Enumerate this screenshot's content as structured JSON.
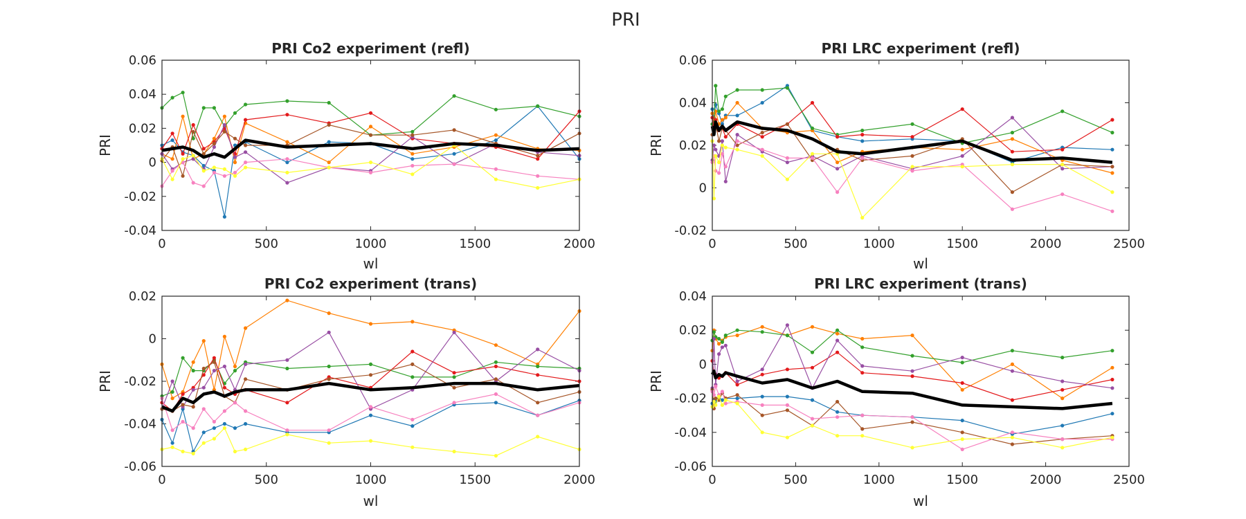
{
  "figure": {
    "title": "PRI"
  },
  "series_colors": [
    "#1f78b4",
    "#ff7f00",
    "#33a02c",
    "#e31a1c",
    "#984ea3",
    "#a65628",
    "#f781bf",
    "#ffff33"
  ],
  "mean_color": "#000000",
  "chart_data": [
    {
      "type": "line",
      "title": "PRI Co2 experiment (refl)",
      "xlabel": "wl",
      "ylabel": "PRI",
      "xlim": [
        0,
        2000
      ],
      "ylim": [
        -0.04,
        0.06
      ],
      "xticks": [
        0,
        500,
        1000,
        1500,
        2000
      ],
      "yticks": [
        -0.04,
        -0.02,
        0,
        0.02,
        0.04,
        0.06
      ],
      "ytick_labels": [
        "-0.04",
        "-0.02",
        "0",
        "0.02",
        "0.04",
        "0.06"
      ],
      "grid": false,
      "legend": "none",
      "x": [
        0,
        50,
        100,
        150,
        200,
        250,
        300,
        350,
        400,
        600,
        800,
        1000,
        1200,
        1400,
        1600,
        1800,
        2000
      ],
      "series": [
        {
          "values": [
            0.01,
            0.013,
            0.006,
            0.004,
            -0.002,
            -0.005,
            -0.032,
            0.01,
            0.012,
            0.0,
            0.012,
            0.011,
            0.002,
            0.005,
            0.013,
            0.033,
            0.002
          ]
        },
        {
          "values": [
            0.005,
            0.002,
            0.027,
            0.002,
            0.005,
            0.014,
            0.027,
            0.0,
            0.023,
            0.012,
            0.0,
            0.021,
            0.005,
            0.009,
            0.016,
            0.008,
            0.007
          ]
        },
        {
          "values": [
            0.032,
            0.038,
            0.041,
            0.014,
            0.032,
            0.032,
            0.021,
            0.029,
            0.034,
            0.036,
            0.035,
            0.016,
            0.018,
            0.039,
            0.031,
            0.033,
            0.027
          ]
        },
        {
          "values": [
            0.008,
            0.017,
            0.005,
            0.022,
            0.008,
            0.012,
            0.02,
            0.005,
            0.025,
            0.028,
            0.023,
            0.029,
            0.014,
            0.011,
            0.009,
            0.002,
            0.03
          ]
        },
        {
          "values": [
            0.005,
            -0.004,
            0.0,
            0.002,
            -0.004,
            0.009,
            0.022,
            0.003,
            0.006,
            -0.012,
            -0.003,
            -0.005,
            0.015,
            -0.001,
            0.011,
            0.006,
            0.004
          ]
        },
        {
          "values": [
            0.001,
            0.009,
            -0.008,
            0.018,
            0.005,
            0.011,
            0.018,
            0.014,
            0.01,
            0.01,
            0.022,
            0.016,
            0.016,
            0.019,
            0.011,
            0.004,
            0.017
          ]
        },
        {
          "values": [
            -0.014,
            -0.005,
            0.0,
            -0.012,
            -0.014,
            -0.006,
            -0.008,
            -0.006,
            0.0,
            0.002,
            -0.003,
            -0.006,
            -0.002,
            -0.001,
            -0.004,
            -0.008,
            -0.01
          ]
        },
        {
          "values": [
            0.002,
            -0.01,
            0.002,
            0.004,
            -0.005,
            -0.003,
            -0.004,
            -0.008,
            -0.003,
            -0.006,
            -0.003,
            0.0,
            -0.007,
            0.01,
            -0.01,
            -0.015,
            -0.01
          ]
        }
      ],
      "mean": [
        0.007,
        0.008,
        0.009,
        0.007,
        0.003,
        0.005,
        0.003,
        0.008,
        0.013,
        0.009,
        0.01,
        0.011,
        0.008,
        0.011,
        0.01,
        0.007,
        0.008
      ]
    },
    {
      "type": "line",
      "title": "PRI LRC experiment (refl)",
      "xlabel": "wl",
      "ylabel": "PRI",
      "xlim": [
        0,
        2500
      ],
      "ylim": [
        -0.02,
        0.06
      ],
      "xticks": [
        0,
        500,
        1000,
        1500,
        2000,
        2500
      ],
      "yticks": [
        -0.02,
        0,
        0.02,
        0.04,
        0.06
      ],
      "ytick_labels": [
        "-0.02",
        "0",
        "0.02",
        "0.04",
        "0.06"
      ],
      "grid": false,
      "legend": "none",
      "x": [
        0,
        10,
        20,
        40,
        60,
        80,
        150,
        300,
        450,
        600,
        750,
        900,
        1200,
        1500,
        1800,
        2100,
        2400
      ],
      "series": [
        {
          "values": [
            0.037,
            0.033,
            0.039,
            0.035,
            0.03,
            0.034,
            0.034,
            0.04,
            0.048,
            0.027,
            0.024,
            0.022,
            0.023,
            0.022,
            0.012,
            0.019,
            0.018
          ]
        },
        {
          "values": [
            0.035,
            0.029,
            0.036,
            0.03,
            0.032,
            0.033,
            0.04,
            0.028,
            0.026,
            0.027,
            0.012,
            0.017,
            0.019,
            0.018,
            0.023,
            0.013,
            0.007
          ]
        },
        {
          "values": [
            0.03,
            0.031,
            0.048,
            0.036,
            0.037,
            0.043,
            0.046,
            0.046,
            0.047,
            0.028,
            0.025,
            0.027,
            0.03,
            0.021,
            0.026,
            0.036,
            0.026
          ]
        },
        {
          "values": [
            0.033,
            0.029,
            0.032,
            0.027,
            0.028,
            0.024,
            0.03,
            0.024,
            0.03,
            0.04,
            0.024,
            0.025,
            0.024,
            0.037,
            0.017,
            0.018,
            0.032
          ]
        },
        {
          "values": [
            0.013,
            0.02,
            0.018,
            0.015,
            0.022,
            0.003,
            0.025,
            0.017,
            0.012,
            0.015,
            0.009,
            0.015,
            0.009,
            0.015,
            0.033,
            0.009,
            0.01
          ]
        },
        {
          "values": [
            0.025,
            0.026,
            0.03,
            0.022,
            0.028,
            0.027,
            0.02,
            0.026,
            0.03,
            0.013,
            0.018,
            0.013,
            0.015,
            0.023,
            -0.002,
            0.011,
            0.01
          ]
        },
        {
          "values": [
            0.012,
            0.015,
            0.008,
            0.007,
            0.016,
            0.01,
            0.022,
            0.018,
            0.014,
            0.014,
            -0.002,
            0.014,
            0.008,
            0.011,
            -0.01,
            -0.003,
            -0.011
          ]
        },
        {
          "values": [
            0.022,
            -0.005,
            0.015,
            0.012,
            0.02,
            0.019,
            0.018,
            0.015,
            0.004,
            0.016,
            0.016,
            -0.014,
            0.01,
            0.01,
            0.011,
            0.011,
            -0.002
          ]
        }
      ],
      "mean": [
        0.029,
        0.025,
        0.031,
        0.027,
        0.029,
        0.027,
        0.031,
        0.028,
        0.027,
        0.023,
        0.017,
        0.016,
        0.019,
        0.022,
        0.013,
        0.014,
        0.012
      ]
    },
    {
      "type": "line",
      "title": "PRI Co2 experiment (trans)",
      "xlabel": "wl",
      "ylabel": "PRI",
      "xlim": [
        0,
        2000
      ],
      "ylim": [
        -0.06,
        0.02
      ],
      "xticks": [
        0,
        500,
        1000,
        1500,
        2000
      ],
      "yticks": [
        -0.06,
        -0.04,
        -0.02,
        0,
        0.02
      ],
      "ytick_labels": [
        "-0.06",
        "-0.04",
        "-0.02",
        "0",
        "0.02"
      ],
      "grid": false,
      "legend": "none",
      "x": [
        0,
        50,
        100,
        150,
        200,
        250,
        300,
        350,
        400,
        600,
        800,
        1000,
        1200,
        1400,
        1600,
        1800,
        2000
      ],
      "series": [
        {
          "values": [
            -0.038,
            -0.049,
            -0.033,
            -0.053,
            -0.044,
            -0.042,
            -0.04,
            -0.042,
            -0.04,
            -0.044,
            -0.044,
            -0.036,
            -0.041,
            -0.031,
            -0.03,
            -0.036,
            -0.029
          ]
        },
        {
          "values": [
            -0.012,
            -0.028,
            -0.025,
            -0.011,
            -0.001,
            -0.024,
            0.001,
            -0.013,
            0.005,
            0.018,
            0.012,
            0.007,
            0.008,
            0.004,
            -0.003,
            -0.012,
            0.013
          ]
        },
        {
          "values": [
            -0.027,
            -0.025,
            -0.009,
            -0.015,
            -0.015,
            -0.01,
            -0.021,
            -0.015,
            -0.011,
            -0.014,
            -0.013,
            -0.012,
            -0.018,
            -0.018,
            -0.011,
            -0.013,
            -0.014
          ]
        },
        {
          "values": [
            -0.03,
            -0.034,
            -0.026,
            -0.023,
            -0.017,
            -0.009,
            -0.023,
            -0.026,
            -0.024,
            -0.03,
            -0.018,
            -0.023,
            -0.006,
            -0.016,
            -0.013,
            -0.017,
            -0.02
          ]
        },
        {
          "values": [
            -0.033,
            -0.02,
            -0.032,
            -0.024,
            -0.023,
            -0.015,
            -0.013,
            -0.024,
            -0.012,
            -0.01,
            0.003,
            -0.033,
            -0.024,
            0.003,
            -0.02,
            -0.005,
            -0.015
          ]
        },
        {
          "values": [
            -0.033,
            -0.034,
            -0.031,
            -0.032,
            -0.014,
            -0.011,
            -0.027,
            -0.03,
            -0.019,
            -0.024,
            -0.019,
            -0.017,
            -0.012,
            -0.023,
            -0.019,
            -0.03,
            -0.025
          ]
        },
        {
          "values": [
            -0.028,
            -0.043,
            -0.039,
            -0.042,
            -0.033,
            -0.039,
            -0.034,
            -0.03,
            -0.034,
            -0.043,
            -0.043,
            -0.032,
            -0.038,
            -0.03,
            -0.026,
            -0.036,
            -0.03
          ]
        },
        {
          "values": [
            -0.052,
            -0.051,
            -0.053,
            -0.054,
            -0.049,
            -0.047,
            -0.042,
            -0.053,
            -0.052,
            -0.045,
            -0.049,
            -0.048,
            -0.051,
            -0.053,
            -0.055,
            -0.046,
            -0.052
          ]
        }
      ],
      "mean": [
        -0.032,
        -0.034,
        -0.028,
        -0.03,
        -0.026,
        -0.025,
        -0.027,
        -0.025,
        -0.024,
        -0.024,
        -0.021,
        -0.024,
        -0.023,
        -0.021,
        -0.021,
        -0.024,
        -0.022
      ]
    },
    {
      "type": "line",
      "title": "PRI LRC experiment (trans)",
      "xlabel": "wl",
      "ylabel": "PRI",
      "xlim": [
        0,
        2500
      ],
      "ylim": [
        -0.06,
        0.04
      ],
      "xticks": [
        0,
        500,
        1000,
        1500,
        2000,
        2500
      ],
      "yticks": [
        -0.06,
        -0.04,
        -0.02,
        0,
        0.02,
        0.04
      ],
      "ytick_labels": [
        "-0.06",
        "-0.04",
        "-0.02",
        "0",
        "0.02",
        "0.04"
      ],
      "grid": false,
      "legend": "none",
      "x": [
        0,
        10,
        20,
        40,
        60,
        80,
        150,
        300,
        450,
        600,
        750,
        900,
        1200,
        1500,
        1800,
        2100,
        2400
      ],
      "series": [
        {
          "values": [
            -0.023,
            -0.021,
            -0.022,
            -0.02,
            -0.021,
            -0.02,
            -0.02,
            -0.019,
            -0.019,
            -0.021,
            -0.028,
            -0.03,
            -0.031,
            -0.033,
            -0.041,
            -0.036,
            -0.029
          ]
        },
        {
          "values": [
            0.008,
            0.02,
            0.015,
            0.012,
            0.014,
            0.016,
            0.017,
            0.022,
            0.017,
            0.022,
            0.018,
            0.015,
            0.017,
            -0.015,
            0.0,
            -0.02,
            -0.002
          ]
        },
        {
          "values": [
            0.014,
            0.019,
            0.016,
            0.015,
            0.013,
            0.017,
            0.02,
            0.019,
            0.017,
            0.007,
            0.02,
            0.01,
            0.005,
            0.001,
            0.008,
            0.004,
            0.008
          ]
        },
        {
          "values": [
            0.002,
            -0.005,
            -0.006,
            -0.008,
            -0.007,
            -0.005,
            -0.012,
            -0.006,
            -0.003,
            -0.002,
            0.007,
            -0.005,
            -0.007,
            -0.011,
            -0.021,
            -0.015,
            -0.009
          ]
        },
        {
          "values": [
            -0.014,
            0.015,
            -0.012,
            0.006,
            0.01,
            0.011,
            -0.01,
            -0.003,
            0.023,
            -0.014,
            0.014,
            -0.001,
            -0.004,
            0.004,
            -0.004,
            -0.01,
            -0.014
          ]
        },
        {
          "values": [
            -0.015,
            -0.026,
            -0.02,
            -0.021,
            -0.017,
            -0.02,
            -0.018,
            -0.03,
            -0.027,
            -0.036,
            -0.022,
            -0.038,
            -0.034,
            -0.04,
            -0.047,
            -0.044,
            -0.042
          ]
        },
        {
          "values": [
            -0.016,
            -0.018,
            -0.013,
            -0.018,
            -0.016,
            -0.023,
            -0.022,
            -0.024,
            -0.024,
            -0.032,
            -0.031,
            -0.03,
            -0.031,
            -0.05,
            -0.04,
            -0.044,
            -0.044
          ]
        },
        {
          "values": [
            -0.025,
            -0.022,
            -0.024,
            -0.019,
            -0.024,
            -0.021,
            -0.023,
            -0.04,
            -0.043,
            -0.036,
            -0.042,
            -0.042,
            -0.049,
            -0.044,
            -0.043,
            -0.049,
            -0.043
          ]
        }
      ],
      "mean": [
        -0.006,
        -0.004,
        -0.008,
        -0.006,
        -0.007,
        -0.005,
        -0.007,
        -0.011,
        -0.009,
        -0.014,
        -0.01,
        -0.016,
        -0.017,
        -0.024,
        -0.025,
        -0.026,
        -0.023
      ]
    }
  ]
}
